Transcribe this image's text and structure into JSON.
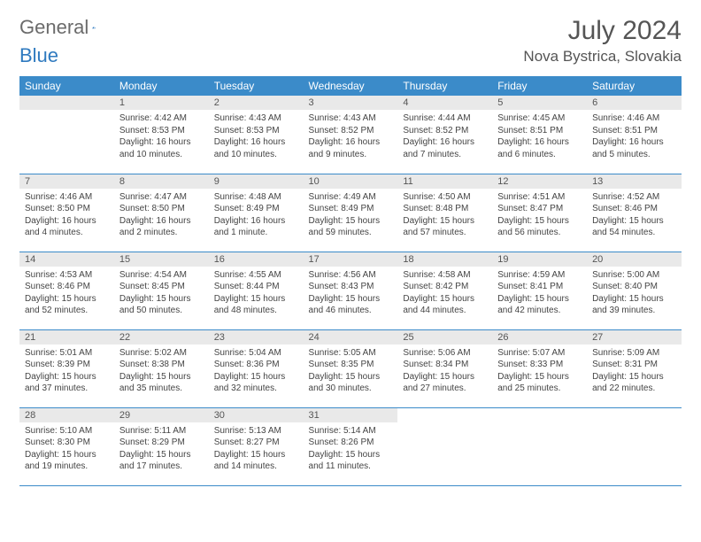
{
  "brand": {
    "part1": "General",
    "part2": "Blue"
  },
  "title": "July 2024",
  "location": "Nova Bystrica, Slovakia",
  "colors": {
    "header_bg": "#3b8bc9",
    "header_text": "#ffffff",
    "daynum_bg": "#e9e9e9",
    "text": "#444444",
    "rule": "#3b8bc9",
    "logo_gray": "#6b6b6b",
    "logo_blue": "#2f7abf"
  },
  "layout": {
    "columns": 7,
    "rows": 5,
    "first_weekday_offset": 1
  },
  "weekdays": [
    "Sunday",
    "Monday",
    "Tuesday",
    "Wednesday",
    "Thursday",
    "Friday",
    "Saturday"
  ],
  "days": [
    {
      "n": 1,
      "sunrise": "4:42 AM",
      "sunset": "8:53 PM",
      "daylight": "16 hours and 10 minutes."
    },
    {
      "n": 2,
      "sunrise": "4:43 AM",
      "sunset": "8:53 PM",
      "daylight": "16 hours and 10 minutes."
    },
    {
      "n": 3,
      "sunrise": "4:43 AM",
      "sunset": "8:52 PM",
      "daylight": "16 hours and 9 minutes."
    },
    {
      "n": 4,
      "sunrise": "4:44 AM",
      "sunset": "8:52 PM",
      "daylight": "16 hours and 7 minutes."
    },
    {
      "n": 5,
      "sunrise": "4:45 AM",
      "sunset": "8:51 PM",
      "daylight": "16 hours and 6 minutes."
    },
    {
      "n": 6,
      "sunrise": "4:46 AM",
      "sunset": "8:51 PM",
      "daylight": "16 hours and 5 minutes."
    },
    {
      "n": 7,
      "sunrise": "4:46 AM",
      "sunset": "8:50 PM",
      "daylight": "16 hours and 4 minutes."
    },
    {
      "n": 8,
      "sunrise": "4:47 AM",
      "sunset": "8:50 PM",
      "daylight": "16 hours and 2 minutes."
    },
    {
      "n": 9,
      "sunrise": "4:48 AM",
      "sunset": "8:49 PM",
      "daylight": "16 hours and 1 minute."
    },
    {
      "n": 10,
      "sunrise": "4:49 AM",
      "sunset": "8:49 PM",
      "daylight": "15 hours and 59 minutes."
    },
    {
      "n": 11,
      "sunrise": "4:50 AM",
      "sunset": "8:48 PM",
      "daylight": "15 hours and 57 minutes."
    },
    {
      "n": 12,
      "sunrise": "4:51 AM",
      "sunset": "8:47 PM",
      "daylight": "15 hours and 56 minutes."
    },
    {
      "n": 13,
      "sunrise": "4:52 AM",
      "sunset": "8:46 PM",
      "daylight": "15 hours and 54 minutes."
    },
    {
      "n": 14,
      "sunrise": "4:53 AM",
      "sunset": "8:46 PM",
      "daylight": "15 hours and 52 minutes."
    },
    {
      "n": 15,
      "sunrise": "4:54 AM",
      "sunset": "8:45 PM",
      "daylight": "15 hours and 50 minutes."
    },
    {
      "n": 16,
      "sunrise": "4:55 AM",
      "sunset": "8:44 PM",
      "daylight": "15 hours and 48 minutes."
    },
    {
      "n": 17,
      "sunrise": "4:56 AM",
      "sunset": "8:43 PM",
      "daylight": "15 hours and 46 minutes."
    },
    {
      "n": 18,
      "sunrise": "4:58 AM",
      "sunset": "8:42 PM",
      "daylight": "15 hours and 44 minutes."
    },
    {
      "n": 19,
      "sunrise": "4:59 AM",
      "sunset": "8:41 PM",
      "daylight": "15 hours and 42 minutes."
    },
    {
      "n": 20,
      "sunrise": "5:00 AM",
      "sunset": "8:40 PM",
      "daylight": "15 hours and 39 minutes."
    },
    {
      "n": 21,
      "sunrise": "5:01 AM",
      "sunset": "8:39 PM",
      "daylight": "15 hours and 37 minutes."
    },
    {
      "n": 22,
      "sunrise": "5:02 AM",
      "sunset": "8:38 PM",
      "daylight": "15 hours and 35 minutes."
    },
    {
      "n": 23,
      "sunrise": "5:04 AM",
      "sunset": "8:36 PM",
      "daylight": "15 hours and 32 minutes."
    },
    {
      "n": 24,
      "sunrise": "5:05 AM",
      "sunset": "8:35 PM",
      "daylight": "15 hours and 30 minutes."
    },
    {
      "n": 25,
      "sunrise": "5:06 AM",
      "sunset": "8:34 PM",
      "daylight": "15 hours and 27 minutes."
    },
    {
      "n": 26,
      "sunrise": "5:07 AM",
      "sunset": "8:33 PM",
      "daylight": "15 hours and 25 minutes."
    },
    {
      "n": 27,
      "sunrise": "5:09 AM",
      "sunset": "8:31 PM",
      "daylight": "15 hours and 22 minutes."
    },
    {
      "n": 28,
      "sunrise": "5:10 AM",
      "sunset": "8:30 PM",
      "daylight": "15 hours and 19 minutes."
    },
    {
      "n": 29,
      "sunrise": "5:11 AM",
      "sunset": "8:29 PM",
      "daylight": "15 hours and 17 minutes."
    },
    {
      "n": 30,
      "sunrise": "5:13 AM",
      "sunset": "8:27 PM",
      "daylight": "15 hours and 14 minutes."
    },
    {
      "n": 31,
      "sunrise": "5:14 AM",
      "sunset": "8:26 PM",
      "daylight": "15 hours and 11 minutes."
    }
  ],
  "labels": {
    "sunrise": "Sunrise: ",
    "sunset": "Sunset: ",
    "daylight": "Daylight: "
  }
}
